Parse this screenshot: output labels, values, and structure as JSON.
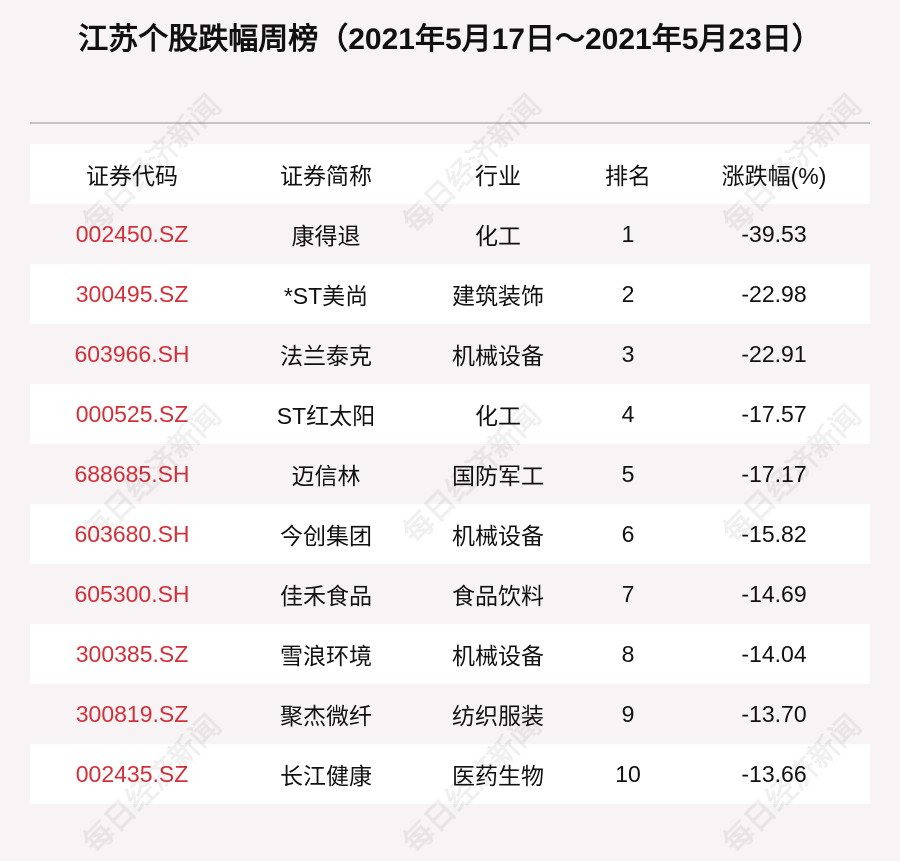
{
  "title": "江苏个股跌幅周榜（2021年5月17日～2021年5月23日）",
  "watermark": "每日经济新闻",
  "colors": {
    "code": "#d3303a",
    "background": "#f8f4f5",
    "row_alt": "#ffffff"
  },
  "table": {
    "headers": [
      "证券代码",
      "证券简称",
      "行业",
      "排名",
      "涨跌幅(%)"
    ],
    "rows": [
      [
        "002450.SZ",
        "康得退",
        "化工",
        "1",
        "-39.53"
      ],
      [
        "300495.SZ",
        "*ST美尚",
        "建筑装饰",
        "2",
        "-22.98"
      ],
      [
        "603966.SH",
        "法兰泰克",
        "机械设备",
        "3",
        "-22.91"
      ],
      [
        "000525.SZ",
        "ST红太阳",
        "化工",
        "4",
        "-17.57"
      ],
      [
        "688685.SH",
        "迈信林",
        "国防军工",
        "5",
        "-17.17"
      ],
      [
        "603680.SH",
        "今创集团",
        "机械设备",
        "6",
        "-15.82"
      ],
      [
        "605300.SH",
        "佳禾食品",
        "食品饮料",
        "7",
        "-14.69"
      ],
      [
        "300385.SZ",
        "雪浪环境",
        "机械设备",
        "8",
        "-14.04"
      ],
      [
        "300819.SZ",
        "聚杰微纤",
        "纺织服装",
        "9",
        "-13.70"
      ],
      [
        "002435.SZ",
        "长江健康",
        "医药生物",
        "10",
        "-13.66"
      ]
    ]
  }
}
